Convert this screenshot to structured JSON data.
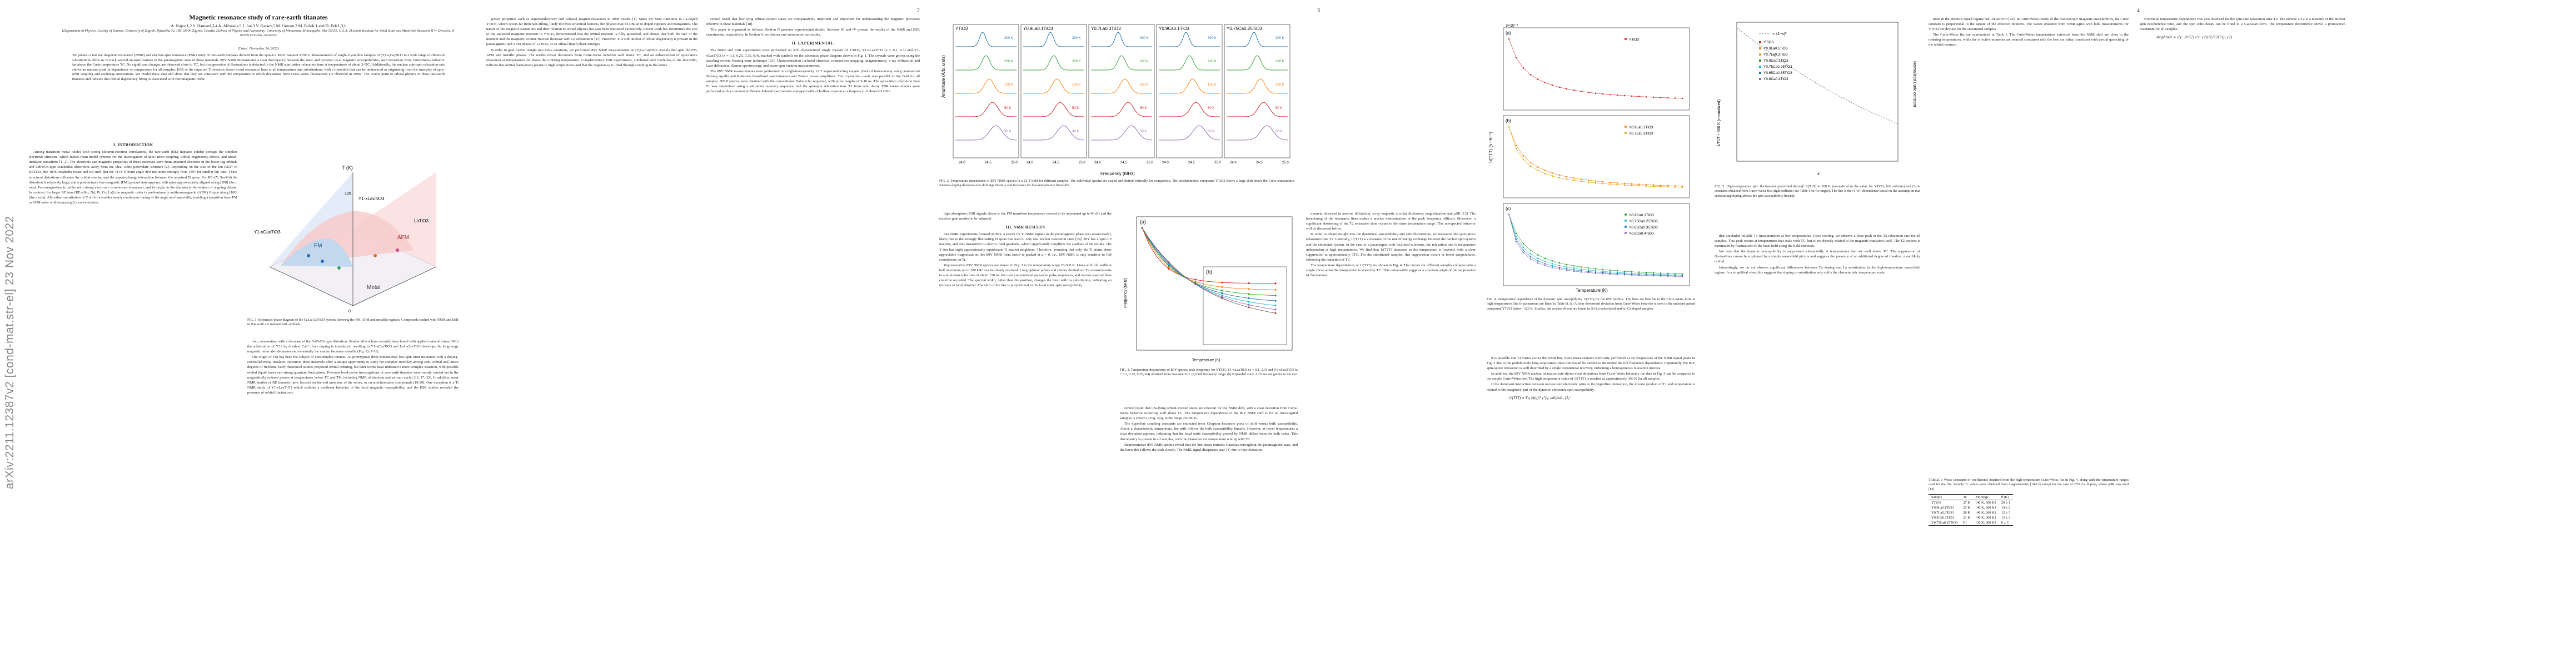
{
  "arxiv_id": "arXiv:2211.12387v2  [cond-mat.str-el]  23 Nov 2022",
  "pages": {
    "page_numbers": [
      "2",
      "3",
      "4"
    ]
  },
  "paper": {
    "title": "Magnetic resonance study of rare-earth titanates",
    "authors": "A. Najev,1,2 S. Hameed,3,4 A. Alfonsov,5 J. Joe,3 V. Kataev,5 M. Greven,3 M. Požek,1 and D. Pelc1,3,†",
    "affiliations": "1Department of Physics, Faculty of Science, University of Zagreb, Bijenička 32, HR-10000 Zagreb, Croatia  2School of Physics and Astronomy, University of Minnesota, Minneapolis, MN 55455, U.S.A.  3Leibniz Institute for Solid State and Materials Research IFW Dresden, D-01069 Dresden, Germany",
    "date": "(Dated: November 24, 2022)",
    "abstract": "We present a nuclear magnetic resonance (NMR) and electron spin resonance (ESR) study of rare-earth titanates derived from the spin-1/2 Mott insulator YTiO3. Measurements of single-crystalline samples of (Y,La,Ca)TiO3 in a wide range of chemical substitutions allow us to track several unusual features in the paramagnetic state of these materials. 89Y NMR demonstrates a clear discrepancy between the static and dynamic local magnetic susceptibilities, with deviations from Curie-Weiss behavior far above the Curie temperature TC. No significant changes are observed close to TC, but a suppression of fluctuations is detected in the NMR spin-lattice relaxation time at temperatures of about 3×TC. Additionally, the nuclear spin-spin relaxation rate shows an unusual peak in dependence on temperature for all samples. ESR of the unpaired Ti-electron shows broad resonance lines at all temperatures and substitutions, with a linewidth that can be understood as originating from the interplay of spin-orbit coupling and exchange interactions. We model these data and show that they are consistent with the temperature at which deviations from Curie-Weiss fluctuations are observed in NMR. The results point to orbital physics in these rare-earth titanates and indicate that orbital degeneracy lifting is associated with ferromagnetic order."
  },
  "sections": {
    "intro_title": "I.   INTRODUCTION",
    "intro_p1": "Among transition metal oxides with strong electron-electron correlations, the rare-earth (RE) titanates exhibit perhaps the simplest electronic structure, which makes them model systems for the investigation of spin-lattice coupling, orbital degeneracy effects, and metal-insulator transitions [1, 2]. The electronic and magnetic properties of these materials stem from unpaired electrons in the lower t2g orbitals and GdFeO3-type octahedral distortions away from the ideal cubic perovskite structure [2]. Depending on the size of the ion RE3+ in RETiO3, the TiO6 octahedra rotate and tilt such that the Ti-O-Ti bond angle deviates more strongly from 180° for smaller RE ions. These structural distortions influence the orbital overlap and the superexchange interaction between the unpaired Ti spins. For RE=(Y, Sm-Gd) the distortion is relatively large, and a predominant ferromagnetic (FM) ground state appears, with spins approximately aligned along [100] (the c axis). Ferromagnetism is unlike with strong electronic correlations is unusual, and its origin in the titanates is the subject of ongoing debate. In contrast, for larger RE ions (RE=(Sm, Nd, Pr, Ce, La)) the magnetic order is predominantly antiferromagnetic (AFM) G-type along [100] (the a axis). Aliovalent substitution of Y with La enables nearly continuous tuning of the angle and bandwidth, enabling a transition from FM to AFM order with increasing La concentration.",
    "col2_p1": "tion, concomitant with a decrease of the GdFeO3-type distortion. Similar effects have recently been found with applied uniaxial stress. With the substitution of Y3+ by divalent Ca2+, hole doping is introduced, resulting in Y1-xCaxTiO3 and La1-xSrxTiO3 develops the long-range magnetic order also decreases and eventually the system becomes metallic (Fig. 1) [7-11].",
    "col2_p2": "The origin of FM has been the subject of considerable interest. As prototypical three-dimensional low-spin Mott insulators with a doping-controlled metal-insulator transition, these materials offer a unique opportunity to study the complex interplay among spin, orbital and lattice degrees of freedom. Early theoretical studies proposed orbital ordering, but later works have indicated a more complex situation, with possible orbital liquid states and strong quantum fluctuations. Previous local-probe investigations of rare-earth titanates were mostly carried out in the magnetically ordered phases at temperatures below TC and TN, including NMR of titanium and yttrium nuclei [12, 17, 22]. In addition, most NMR studies of RE titanates have focused on the end members of the series, or on stoichiometric compounds [19-29]. One exception is a Ti NMR study of Y1-xLaxTiO3 which exhibits a nonlinear behavior of the local magnetic susceptibility, and the ESR studies revealed the presence of orbital fluctuations.",
    "col3_p1": "grown properties such as superconductivity and colossal magnetoresistance in other oxides [1]. Since the Mott transition in Ca-doped YTiO3, which occurs far from half-filling, likely involves structural features, the physics may be similar to doped cuprates and manganites. The nature of the magnetic transitions and their relation to orbital physics has also been discussed extensively. Recent work has determined the size of the saturated magnetic moment in YTiO3, demonstrated that the orbital moment is fully quenched, and shown that both the size of the moment and the magnetic volume fraction decrease with La substitution [13]. However, it is still unclear if orbital degeneracy is present in the paramagnetic and AFM phases of LaTiO3, or an orbital-liquid phase emerges.",
    "col3_p2": "In order to gain further insight into these questions, we performed 89Y NMR measurements on (Y,La,Ca)TiO3 crystals that span the FM, AFM and metallic phases. The results reveal deviations from Curie-Weiss behavior well above TC, and an enhancement of spin-lattice relaxation at temperatures far above the ordering temperature. Complementary ESR experiments, combined with modeling of the linewidth, indicate that orbital fluctuations persist to high temperatures and that the degeneracy is lifted through coupling to the lattice.",
    "col4_p1": "central result that low-lying orbital-excited states are comparatively important and important for understanding the magnetic processes effective in these materials [18].",
    "col4_p2": "This paper is organized as follows. Section II presents experimental details. Sections III and IV present the results of the NMR and ESR experiments, respectively. In Section V, we discuss and summarize our results.",
    "exp_title": "II.   EXPERIMENTAL",
    "exp_p1": "The NMR and ESR experiments were performed on well-characterized single crystals of YTiO3, Y1-xLaxTiO3 (x = 0.1, 0.3) and Y1-xCaxTiO3 (x = 0.1, 0.25, 0.35, 0.4), marked with symbols on the schematic phase diagram shown in Fig. 1. The crystals were grown using the traveling-solvent floating-zone technique [23]. Characterization included chemical composition mapping, magnetometry, x-ray diffraction and Laue diffraction, Raman spectroscopy, and muon spin rotation measurements.",
    "exp_p2": "The 89Y NMR measurements were performed in a high-homogeneity 12 T superconducting magnet (Oxford Instruments) using commercial Tecmag Apollo and Redstone broadband spectrometers and Tomco power amplifiers. The crystalline c-axis was parallel to the field for all samples. NMR spectra were obtained with the conventional Hahn echo sequence, with pulse lengths of 5-10 us. The spin-lattice relaxation time T1 was determined using a saturation recovery sequence, and the spin-spin relaxation time T2 from echo decay. ESR measurements were performed with a commercial Bruker X-band spectrometer equipped with a He-flow cryostat at a frequency of about 9.5 GHz.",
    "col5_p1": "high absorption, ESR signals closer to the FM transition temperature needed to be attenuated up to 40 dB and the receiver gain needed to be adjusted.",
    "nmr_title": "III.   NMR RESULTS",
    "nmr_p1": "Our NMR experiments focused on 89Y, a search for Ti NMR signals in the paramagnetic phase was unsuccessful, likely due to the strongly fluctuating Ti spins that lead to very fast nuclear relaxation rates [30]. 89Y has a spin-1/2 nucleus, and thus insensitive to electric field gradients, which significantly simplifies the analysis of the results. The Y ion has eight approximately equidistant Ti nearest neighbors. Therefore, assuming that only the Ti atoms show appreciable magnetization, the 89Y NMR form factor is peaked at q = 0, i.e., 89Y NMR is only sensitive to FM correlations on Ti.",
    "nmr_p2": "Representative 89Y NMR spectra are shown in Fig. 2 in the temperature range 20-300 K. Lines with full width at half maximum up to 300 kHz can be clearly resolved. Long optimal pulses and r times limited our T2 measurements to a minimum echo time of about 150 us. We used conventional spin-echo pulse sequences, and narrow spectral lines could be recorded. The spectral width, rather than the position, changes the most with La substitution, indicating an increase in local disorder. The shift of the line is proportional to the local static spin susceptibility.",
    "col6_p1": "central result that low-lying orbital-excited states are relevant for the NMR shift, with a clear deviation from Curie-Weiss behavior occurring well above TC. The temperature dependence of the 89Y NMR shift K for all investigated samples is shown in Fig. 3(a), in the range 20-300 K.",
    "col6_p2": "The hyperfine coupling constants are extracted from Clogston-Jaccarino plots of shift versus bulk susceptibility. Above a characteristic temperature, the shift follows the bulk susceptibility linearly. However, at lower temperatures a clear deviation appears, indicating that the local static susceptibility probed by NMR differs from the bulk value. This discrepancy is present in all samples, with the characteristic temperature scaling with TC.",
    "col6_p3": "Representative 89Y NMR spectra reveal that the line shape remains Gaussian throughout the paramagnetic state, and the linewidth follows the shift closely. The NMR signal disappears near TC due to fast relaxation.",
    "col7_p1": "moment observed in neutron diffraction, x-ray magnetic circular dichroism, magnetization and µSR [13]. The broadening of the resonance lines makes a precise determination of the peak frequency difficult. Moreover, a significant shortening of the T2 relaxation time occurs in the same temperature range. This unexpected behavior will be discussed below.",
    "col7_p2": "In order to obtain insight into the dynamical susceptibility and spin fluctuations, we measured the spin-lattice relaxation time T1. Generally, 1/(T1T) is a measure of the rate of energy exchange between the nuclear spin system and the electronic system. In the case of a paramagnet with localized moments, the relaxation rate is temperature independent at high temperatures. We find that 1/(T1T) increases as the temperature is lowered, with a clear suppression at approximately 3TC. For the substituted samples, this suppression occurs at lower temperatures, following the reduction of TC.",
    "col7_p3": "The temperature dependences of 1/(T1T) are shown in Fig. 4. The curves for different samples collapse onto a single curve when the temperature is scaled by TC. This universality suggests a common origin of the suppression of fluctuations.",
    "col8_p1": "it is possible that T1 varies across the NMR line, these measurements were only performed at the frequencies of the NMR signal peaks in Fig. 2 due to the prohibitively long acquisition times that would be needed to determine the full frequency dependence. Importantly, the 89Y spin-lattice relaxation is well described by a single exponential recovery, indicating a homogeneous relaxation process.",
    "col8_p2": "In addition, the 89Y NMR nuclear relaxation rate shows clear deviations from Curie-Weiss behavior, the data in Fig. 5 can be compared to the simple Curie-Weiss law. The high-temperature value of 1/(T1T) is reached at approximately 300 K for all samples.",
    "col8_p3": "If the dominant interaction between nuclear and electronic spins is the hyperfine interaction, the inverse product of T1 and temperature is related to the imaginary part of the dynamic electronic spin susceptibility.",
    "col9_p1": "that precluded reliable T1 measurements at low temperatures. Upon cooling, we observe a clear peak in the T2 relaxation rate for all samples. This peak occurs at temperatures that scale with TC, but is not directly related to the magnetic transition itself. The T2 process is dominated by fluctuations of the local field along the field direction.",
    "col9_p2": "We note that the dynamic susceptibility is suppressed substantially at temperatures that are well above TC. The suppression of fluctuations cannot be explained by a simple mean-field picture and suggests the presence of an additional degree of freedom, most likely orbital.",
    "col9_p3": "Interestingly, we do not observe significant differences between Ca doping and La substitution in the high-temperature mean-field regime. In a simplified view, this suggests that doping or substitution only shifts the characteristic temperature scale.",
    "col10_p1": "tions in the electron doped regime Nd1-xCaxTiO3 [26]. In Curie-Weiss theory of the macroscopic magnetic susceptibility, the Curie constant is proportional to the square of the effective moment. The values obtained from NMR agree with bulk measurements for YTiO3 but deviate for the substituted samples.",
    "col10_p2": "The Curie-Weiss fits are summarized in Table I. The Curie-Weiss temperatures extracted from the NMR shift are close to the ordering temperatures, while the effective moments are reduced compared with the free ion value, consistent with partial quenching of the orbital moment.",
    "col10_p3": "Nontrivial temperature dependence was also observed for the spin-spin relaxation time T2. The inverse 1/T2 is a measure of the nuclear spin decoherence time, and the spin echo decay can be fitted to a Gaussian form. The temperature dependence shows a pronounced maximum for all samples.",
    "eq1": "1/(T1T) ∝ Σq |A(q)|² χ″(q, ω0)/ω0 ,   (1)",
    "eq2": "Amplitude ∝ e^(−2τ/T2) e^(−(2τ)²/(2T2G²)) ,   (2)"
  },
  "figures": {
    "fig1_caption": "FIG. 1.  Schematic phase diagram of the (Y,La,Ca)TiO3 system, showing the FM, AFM and metallic regimes. Compounds studied with NMR and ESR in this work are marked with symbols.",
    "fig1_labels": {
      "axis_y": "T (K)",
      "axis_left": "Y1-xCaxTiO3",
      "axis_top": "Y1-xLaxTiO3",
      "axis_right": "LaTiO3",
      "phase_fm": "FM",
      "phase_afm": "AFM",
      "phase_metal": "Metal",
      "tick_100": "100",
      "tick_0": "0"
    },
    "fig2_caption": "FIG. 2.  Temperature dependence of 89Y NMR spectra in a 12 T field for different samples. The individual spectra are scaled and shifted vertically for comparison. The stoichiometric compound YTiO3 shows a large shift above the Curie temperature, whereas doping decreases the shift significantly and increases the low-temperature linewidth.",
    "fig2_xlabel": "Frequency (MHz)",
    "fig2_ylabel": "Amplitude (Arb. units)",
    "fig2_panels": [
      {
        "title": "YTiO3",
        "temps": [
          "300 K",
          "200 K",
          "100 K",
          "50 K",
          "30 K"
        ]
      },
      {
        "title": "Y0.9La0.1TiO3",
        "temps": [
          "300 K",
          "200 K",
          "100 K",
          "50 K",
          "30 K"
        ]
      },
      {
        "title": "Y0.7La0.3TiO3",
        "temps": [
          "300 K",
          "200 K",
          "100 K",
          "50 K",
          "30 K"
        ]
      },
      {
        "title": "Y0.9Ca0.1TiO3",
        "temps": [
          "300 K",
          "200 K",
          "100 K",
          "50 K",
          "30 K"
        ]
      },
      {
        "title": "Y0.75Ca0.25TiO3",
        "temps": [
          "300 K",
          "200 K",
          "100 K",
          "50 K",
          "30 K"
        ]
      }
    ],
    "fig2_ticks": [
      "24.0",
      "24.5",
      "25.0"
    ],
    "fig3_caption": "FIG. 3.  Temperature dependence of 89Y spectra peak frequency for YTiO3, Y1-xLaxTiO3 (x = 0.1, 0.3) and Y1-xCaxTiO3 (x = 0.1, 0.25, 0.35, 0.4) obtained from Gaussian fits. (a) Full frequency range. (b) Expanded view. All lines are guides to the eye.",
    "fig3_labels": {
      "panel_a": "(a)",
      "panel_b": "(b)",
      "ylabel": "Frequency (MHz)",
      "xlabel": "Temperature (K)"
    },
    "fig4_caption": "FIG. 4.  Temperature dependence of the dynamic spin susceptibility 1/(T1T) for the 89Y nucleus. The lines are best fits to the Curie-Weiss form at high temperatures (the fit parameters are listed in Table I). (a) A clear downward deviation from Curie-Weiss behavior is seen in the undoped parent compound YTiO3 below ~120 K. Similar, but weaker effects are found in (b) La-substituted and (c) Ca-doped samples.",
    "fig4_labels": {
      "panel_a": "(a)",
      "panel_b": "(b)",
      "panel_c": "(c)",
      "ylabel": "1/(T1T) (s⁻¹K⁻¹)",
      "xlabel": "Temperature (K)",
      "ytop": "3×10⁻³"
    },
    "fig4_legend_a": [
      "YTiO3"
    ],
    "fig4_legend_b": [
      "Y0.9La0.1TiO3",
      "Y0.7La0.3TiO3"
    ],
    "fig4_legend_c": [
      "Y0.9Ca0.1TiO3",
      "Y0.75Ca0.25TiO3",
      "Y0.65Ca0.35TiO3",
      "Y0.6Ca0.4TiO3"
    ],
    "fig5_caption": "FIG. 5.  High-temperature spin fluctuations quantified through 1/(T1T) at 300 K (normalized to the value for YTiO3, left ordinate) and Curie constants obtained from Curie-Weiss fits (right ordinate; see Table I for fit ranges). The line is the (1−x)² dependence based on the assumption that substituting/doping affects the spin susceptibility linearly.",
    "fig5_labels": {
      "ylabel_left": "1/T1T ÷ 300 K (normalized)",
      "ylabel_right": "Normalized Curie constant",
      "xlabel": "x",
      "legend_line": "∝ (1−x)²",
      "series": [
        "YTiO3",
        "Y0.9La0.1TiO3",
        "Y0.7La0.3TiO3",
        "Y0.9Ca0.1TiO3",
        "Y0.75Ca0.25TiO3",
        "Y0.65Ca0.35TiO3",
        "Y0.6Ca0.4TiO3"
      ]
    }
  },
  "table": {
    "caption": "TABLE I.  Weiss constants of coefficients obtained from the high-temperature Curie-Weiss fits in Fig. 4, along with the temperature ranges used for the fits. Sample Tc values were obtained from magnetometry [10-13] except for the case of 25% Ca doping, where µSR was used [15].",
    "headers": [
      "Sample",
      "Tc",
      "Fit range",
      "θ (K)"
    ],
    "rows": [
      [
        "YTiO3",
        "27 K",
        "[40 K, 300 K]",
        "20 ± 1"
      ],
      [
        "Y0.9La0.1TiO3",
        "23 K",
        "[40 K, 300 K]",
        "14 ± 2"
      ],
      [
        "Y0.7La0.3TiO3",
        "20 K",
        "[40 K, 300 K]",
        "12 ± 3"
      ],
      [
        "Y0.9Ca0.1TiO3",
        "21 K",
        "[40 K, 300 K]",
        "13 ± 3"
      ],
      [
        "Y0.75Ca0.25TiO3",
        "P1",
        "[30 K, 300 K]",
        "6 ± 5"
      ]
    ]
  }
}
